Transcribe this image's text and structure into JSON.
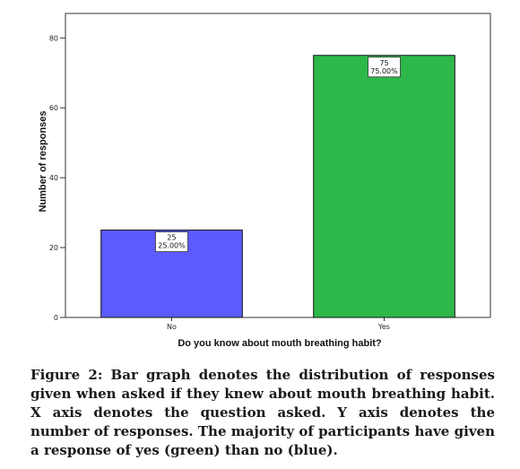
{
  "chart_data": {
    "type": "bar",
    "categories": [
      "No",
      "Yes"
    ],
    "values": [
      25,
      75
    ],
    "percent_labels": [
      "25.00%",
      "75.00%"
    ],
    "colors": [
      "#5b5bff",
      "#2eb84a"
    ],
    "title": "",
    "xlabel": "Do you know about mouth breathing habit?",
    "ylabel": "Number of responses",
    "ylim": [
      0,
      87
    ],
    "yticks": [
      0,
      20,
      40,
      60,
      80
    ],
    "grid": false
  },
  "caption": "Figure 2: Bar graph denotes the distribution of responses given when asked if they knew about mouth breathing habit. X axis denotes the question asked. Y axis denotes the number of responses. The majority of participants have given a response of yes (green) than no (blue)."
}
